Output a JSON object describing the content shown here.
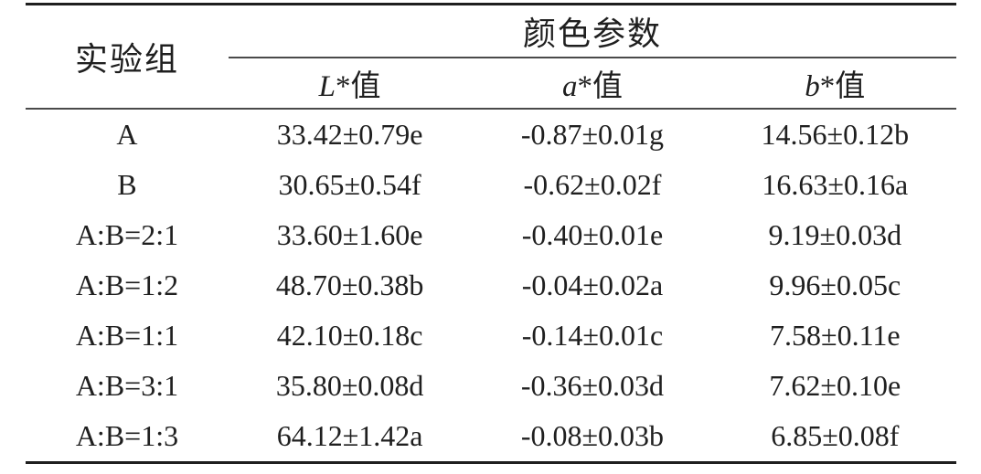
{
  "table": {
    "group_header": "实验组",
    "span_header": "颜色参数",
    "columns": [
      {
        "letter": "L",
        "suffix": "*值"
      },
      {
        "letter": "a",
        "suffix": "*值"
      },
      {
        "letter": "b",
        "suffix": "*值"
      }
    ],
    "rows": [
      {
        "group": "A",
        "L": "33.42±0.79e",
        "a": "-0.87±0.01g",
        "b": "14.56±0.12b"
      },
      {
        "group": "B",
        "L": "30.65±0.54f",
        "a": "-0.62±0.02f",
        "b": "16.63±0.16a"
      },
      {
        "group": "A:B=2:1",
        "L": "33.60±1.60e",
        "a": "-0.40±0.01e",
        "b": "9.19±0.03d"
      },
      {
        "group": "A:B=1:2",
        "L": "48.70±0.38b",
        "a": "-0.04±0.02a",
        "b": "9.96±0.05c"
      },
      {
        "group": "A:B=1:1",
        "L": "42.10±0.18c",
        "a": "-0.14±0.01c",
        "b": "7.58±0.11e"
      },
      {
        "group": "A:B=3:1",
        "L": "35.80±0.08d",
        "a": "-0.36±0.03d",
        "b": "7.62±0.10e"
      },
      {
        "group": "A:B=1:3",
        "L": "64.12±1.42a",
        "a": "-0.08±0.03b",
        "b": "6.85±0.08f"
      }
    ],
    "colors": {
      "text": "#1f1f1f",
      "heavy_rule": "#1f1f1f",
      "light_rule": "#4a4a4a",
      "background": "#ffffff"
    }
  }
}
